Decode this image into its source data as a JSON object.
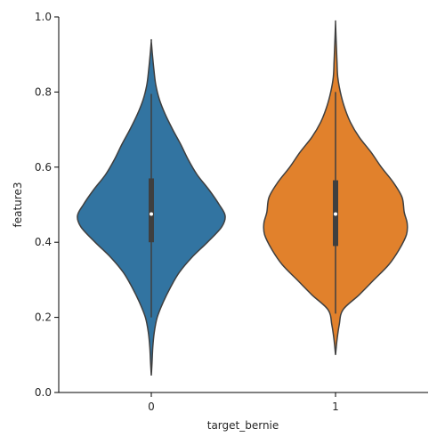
{
  "chart_data": {
    "type": "violin",
    "title": "",
    "xlabel": "target_bernie",
    "ylabel": "feature3",
    "ylim": [
      0.0,
      1.0
    ],
    "y_ticks": [
      "0.0",
      "0.2",
      "0.4",
      "0.6",
      "0.8",
      "1.0"
    ],
    "y_tick_values": [
      0.0,
      0.2,
      0.4,
      0.6,
      0.8,
      1.0
    ],
    "grid": false,
    "categories": [
      "0",
      "1"
    ],
    "series": [
      {
        "category": "0",
        "color": "#3274a1",
        "min": 0.045,
        "max": 0.935,
        "whisker_low": 0.2,
        "q1": 0.4,
        "median": 0.475,
        "q3": 0.57,
        "whisker_high": 0.795,
        "density": [
          [
            0.045,
            0.0
          ],
          [
            0.08,
            0.01
          ],
          [
            0.12,
            0.02
          ],
          [
            0.16,
            0.04
          ],
          [
            0.2,
            0.08
          ],
          [
            0.24,
            0.16
          ],
          [
            0.28,
            0.26
          ],
          [
            0.32,
            0.38
          ],
          [
            0.36,
            0.55
          ],
          [
            0.4,
            0.76
          ],
          [
            0.44,
            0.95
          ],
          [
            0.47,
            1.0
          ],
          [
            0.5,
            0.92
          ],
          [
            0.54,
            0.78
          ],
          [
            0.58,
            0.62
          ],
          [
            0.62,
            0.5
          ],
          [
            0.66,
            0.4
          ],
          [
            0.7,
            0.29
          ],
          [
            0.74,
            0.19
          ],
          [
            0.78,
            0.11
          ],
          [
            0.82,
            0.06
          ],
          [
            0.86,
            0.035
          ],
          [
            0.9,
            0.015
          ],
          [
            0.935,
            0.0
          ]
        ]
      },
      {
        "category": "1",
        "color": "#e1812c",
        "min": 0.1,
        "max": 0.985,
        "whisker_low": 0.21,
        "q1": 0.39,
        "median": 0.475,
        "q3": 0.565,
        "whisker_high": 0.8,
        "density": [
          [
            0.1,
            0.0
          ],
          [
            0.14,
            0.02
          ],
          [
            0.18,
            0.05
          ],
          [
            0.22,
            0.1
          ],
          [
            0.26,
            0.32
          ],
          [
            0.3,
            0.52
          ],
          [
            0.34,
            0.72
          ],
          [
            0.38,
            0.86
          ],
          [
            0.42,
            0.96
          ],
          [
            0.45,
            0.97
          ],
          [
            0.48,
            0.93
          ],
          [
            0.52,
            0.9
          ],
          [
            0.56,
            0.78
          ],
          [
            0.6,
            0.62
          ],
          [
            0.64,
            0.48
          ],
          [
            0.68,
            0.32
          ],
          [
            0.72,
            0.2
          ],
          [
            0.76,
            0.12
          ],
          [
            0.8,
            0.065
          ],
          [
            0.84,
            0.03
          ],
          [
            0.88,
            0.02
          ],
          [
            0.92,
            0.012
          ],
          [
            0.95,
            0.006
          ],
          [
            0.985,
            0.0
          ]
        ]
      }
    ]
  }
}
